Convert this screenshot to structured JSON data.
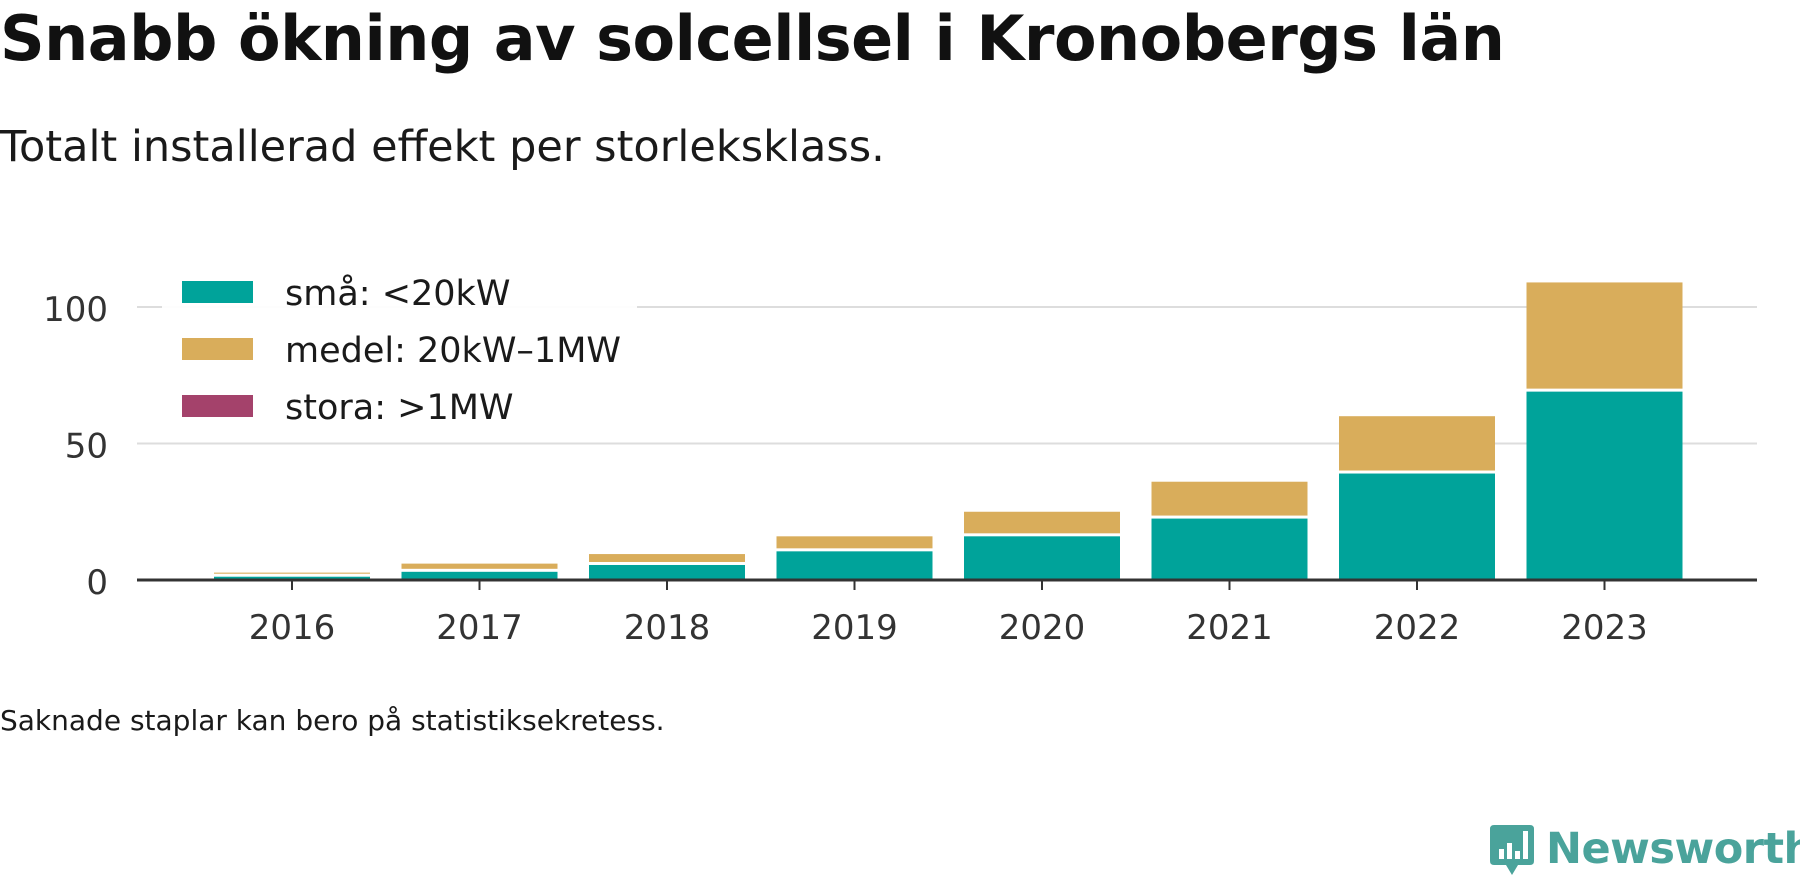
{
  "header": {
    "title": "Snabb ökning av solcellsel i Kronobergs län",
    "subtitle": "Totalt installerad effekt per storleksklass."
  },
  "footnote": "Saknade staplar kan bero på statistiksekretess.",
  "brand": {
    "name": "Newsworthy",
    "icon": "newsworthy-logo-icon",
    "color": "#4aa39b"
  },
  "chart_data": {
    "type": "bar",
    "stacked": true,
    "categories": [
      "2016",
      "2017",
      "2018",
      "2019",
      "2020",
      "2021",
      "2022",
      "2023"
    ],
    "series": [
      {
        "name": "små: <20kW",
        "color": "#00a39a",
        "values": [
          1.2,
          3,
          5.5,
          10.5,
          16,
          22.5,
          39,
          69
        ]
      },
      {
        "name": "medel: 20kW–1MW",
        "color": "#d9ad5b",
        "values": [
          1.5,
          3,
          4,
          5.5,
          9,
          13.5,
          21,
          40
        ]
      },
      {
        "name": "stora: >1MW",
        "color": "#a4426b",
        "values": [
          0,
          0,
          0,
          0,
          0,
          0,
          0,
          0
        ]
      }
    ],
    "ylim": [
      0,
      110
    ],
    "yticks": [
      0,
      50,
      100
    ],
    "grid": true,
    "legend_position": "top-left"
  }
}
